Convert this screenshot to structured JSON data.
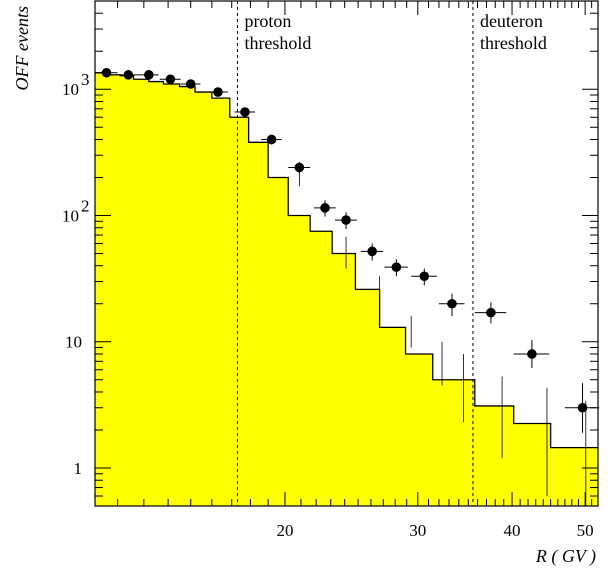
{
  "chart_data": {
    "type": "histogram-with-points",
    "title": "",
    "xlabel": "R ( GV )",
    "ylabel": "OFF events",
    "xlim": [
      11.2,
      52
    ],
    "ylim": [
      0.5,
      5000
    ],
    "x_scale": "log",
    "y_scale": "log",
    "x_ticks": [
      {
        "value": 20,
        "label": "20"
      },
      {
        "value": 30,
        "label": "30"
      },
      {
        "value": 40,
        "label": "40"
      },
      {
        "value": 50,
        "label": "50"
      }
    ],
    "y_ticks": [
      {
        "value": 1,
        "label": "1",
        "sup": ""
      },
      {
        "value": 10,
        "label": "10",
        "sup": ""
      },
      {
        "value": 100,
        "label": "10",
        "sup": "2"
      },
      {
        "value": 1000,
        "label": "10",
        "sup": "3"
      }
    ],
    "fill_color": "#ffff00",
    "annotations": [
      {
        "x": 17.3,
        "lines": [
          "proton",
          "threshold"
        ]
      },
      {
        "x": 35.5,
        "lines": [
          "deuteron",
          "threshold"
        ]
      }
    ],
    "histogram": {
      "edges": [
        11.2,
        11.6,
        12.1,
        12.6,
        13.2,
        13.8,
        14.5,
        15.2,
        16.0,
        16.9,
        17.9,
        19.0,
        20.2,
        21.6,
        23.1,
        24.8,
        26.7,
        28.9,
        31.4,
        35.7,
        40.2,
        45.0,
        52.0
      ],
      "values": [
        1350,
        1300,
        1280,
        1200,
        1150,
        1100,
        1050,
        950,
        850,
        600,
        380,
        200,
        100,
        75,
        50,
        26,
        13,
        8,
        5,
        3.1,
        2.25,
        1.45
      ]
    },
    "points": [
      {
        "x": 11.6,
        "y": 1350,
        "xerr": 0.4,
        "yerr": [
          1300,
          1400
        ]
      },
      {
        "x": 12.4,
        "y": 1300,
        "xerr": 0.4,
        "yerr": [
          1250,
          1350
        ]
      },
      {
        "x": 13.2,
        "y": 1300,
        "xerr": 0.4,
        "yerr": [
          1250,
          1350
        ]
      },
      {
        "x": 14.1,
        "y": 1200,
        "xerr": 0.45,
        "yerr": [
          1150,
          1250
        ]
      },
      {
        "x": 15.0,
        "y": 1100,
        "xerr": 0.45,
        "yerr": [
          1050,
          1150
        ]
      },
      {
        "x": 16.3,
        "y": 950,
        "xerr": 0.5,
        "yerr": [
          890,
          1010
        ]
      },
      {
        "x": 17.7,
        "y": 660,
        "xerr": 0.55,
        "yerr": [
          610,
          710
        ]
      },
      {
        "x": 19.2,
        "y": 400,
        "xerr": 0.6,
        "yerr": [
          365,
          435
        ]
      },
      {
        "x": 20.9,
        "y": 240,
        "xerr": 0.7,
        "yerr": [
          215,
          265
        ]
      },
      {
        "x": 22.6,
        "y": 115,
        "xerr": 0.75,
        "yerr": [
          98,
          132
        ]
      },
      {
        "x": 24.1,
        "y": 92,
        "xerr": 0.8,
        "yerr": [
          78,
          106
        ]
      },
      {
        "x": 26.1,
        "y": 52,
        "xerr": 0.9,
        "yerr": [
          44,
          60
        ]
      },
      {
        "x": 28.1,
        "y": 39,
        "xerr": 1.0,
        "yerr": [
          33,
          45
        ]
      },
      {
        "x": 30.6,
        "y": 33,
        "xerr": 1.2,
        "yerr": [
          28,
          38
        ]
      },
      {
        "x": 33.3,
        "y": 20,
        "xerr": 1.3,
        "yerr": [
          16,
          24
        ]
      },
      {
        "x": 37.5,
        "y": 17,
        "xerr": 1.8,
        "yerr": [
          14,
          20.5
        ]
      },
      {
        "x": 42.5,
        "y": 8,
        "xerr": 2.3,
        "yerr": [
          6.2,
          10.3
        ]
      },
      {
        "x": 49.6,
        "y": 3,
        "xerr": 2.6,
        "yerr": [
          1.9,
          4.7
        ]
      }
    ],
    "mc_errors": [
      {
        "x": 20.9,
        "lo": 170,
        "hi": 230
      },
      {
        "x": 24.1,
        "lo": 38,
        "hi": 68
      },
      {
        "x": 26.7,
        "lo": 19,
        "hi": 33
      },
      {
        "x": 29.4,
        "lo": 9,
        "hi": 16
      },
      {
        "x": 32.3,
        "lo": 4.5,
        "hi": 10
      },
      {
        "x": 34.5,
        "lo": 2.3,
        "hi": 8
      },
      {
        "x": 38.8,
        "lo": 1.2,
        "hi": 5.3
      },
      {
        "x": 44.5,
        "lo": 0.6,
        "hi": 4.3
      },
      {
        "x": 50.1,
        "lo": 0.5,
        "hi": 3.4
      }
    ]
  }
}
